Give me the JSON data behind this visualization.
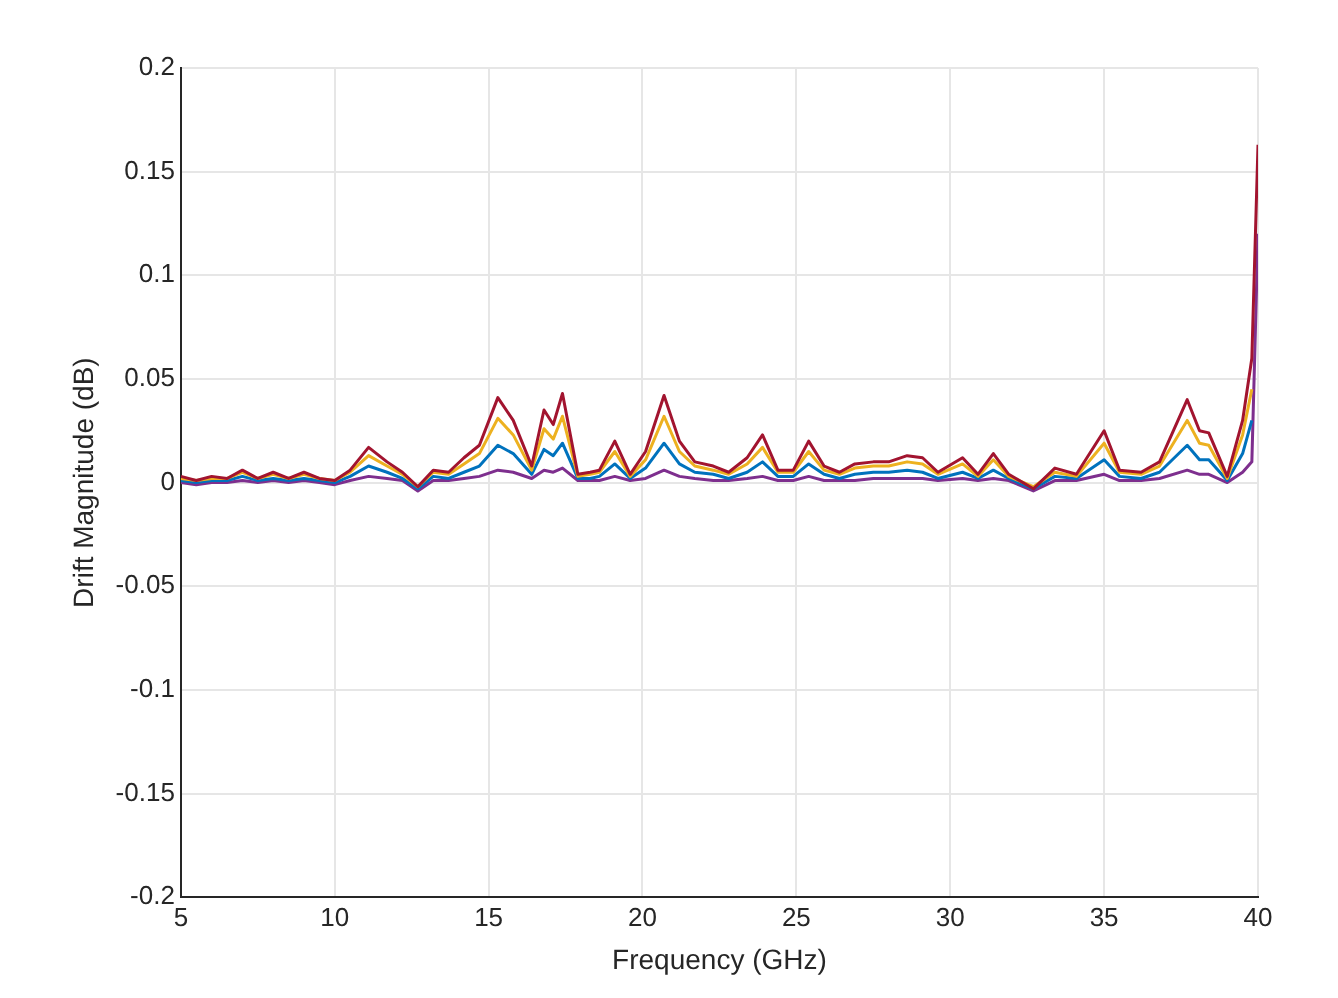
{
  "chart_data": {
    "type": "line",
    "xlabel": "Frequency (GHz)",
    "ylabel": "Drift Magnitude (dB)",
    "x": [
      5,
      5.5,
      6,
      6.5,
      7,
      7.5,
      8,
      8.5,
      9,
      9.5,
      10,
      10.5,
      11.1,
      11.7,
      12.2,
      12.7,
      13.2,
      13.7,
      14.2,
      14.7,
      15.3,
      15.8,
      16.4,
      16.8,
      17.1,
      17.4,
      17.9,
      18.3,
      18.6,
      19.1,
      19.6,
      20.1,
      20.7,
      21.2,
      21.7,
      22.3,
      22.8,
      23.4,
      23.9,
      24.4,
      24.9,
      25.4,
      25.9,
      26.4,
      26.9,
      27.5,
      28,
      28.6,
      29.1,
      29.6,
      30.4,
      30.9,
      31.4,
      31.9,
      32.7,
      33.4,
      34.1,
      35,
      35.5,
      36.2,
      36.8,
      37.7,
      38.1,
      38.4,
      39,
      39.5,
      39.8,
      40
    ],
    "series": [
      {
        "color": "#a2142f",
        "values": [
          0.003,
          0.001,
          0.003,
          0.002,
          0.006,
          0.002,
          0.005,
          0.002,
          0.005,
          0.002,
          0.001,
          0.006,
          0.017,
          0.01,
          0.005,
          -0.002,
          0.006,
          0.005,
          0.012,
          0.018,
          0.041,
          0.03,
          0.008,
          0.035,
          0.028,
          0.043,
          0.004,
          0.005,
          0.006,
          0.02,
          0.004,
          0.015,
          0.042,
          0.02,
          0.01,
          0.008,
          0.005,
          0.012,
          0.023,
          0.006,
          0.006,
          0.02,
          0.008,
          0.005,
          0.009,
          0.01,
          0.01,
          0.013,
          0.012,
          0.005,
          0.012,
          0.004,
          0.014,
          0.004,
          -0.003,
          0.007,
          0.004,
          0.025,
          0.006,
          0.005,
          0.01,
          0.04,
          0.025,
          0.024,
          0.003,
          0.03,
          0.06,
          0.163
        ]
      },
      {
        "color": "#edb120",
        "values": [
          0.002,
          0.001,
          0.002,
          0.002,
          0.005,
          0.002,
          0.004,
          0.002,
          0.004,
          0.002,
          0.001,
          0.005,
          0.013,
          0.008,
          0.004,
          -0.002,
          0.005,
          0.004,
          0.009,
          0.014,
          0.031,
          0.023,
          0.006,
          0.026,
          0.021,
          0.032,
          0.003,
          0.004,
          0.005,
          0.015,
          0.003,
          0.011,
          0.032,
          0.015,
          0.008,
          0.006,
          0.004,
          0.009,
          0.017,
          0.005,
          0.005,
          0.015,
          0.006,
          0.004,
          0.007,
          0.008,
          0.008,
          0.01,
          0.009,
          0.004,
          0.009,
          0.003,
          0.011,
          0.003,
          -0.002,
          0.005,
          0.003,
          0.019,
          0.005,
          0.004,
          0.008,
          0.03,
          0.019,
          0.018,
          0.002,
          0.023,
          0.045,
          null
        ]
      },
      {
        "color": "#0072bd",
        "values": [
          0.001,
          0,
          0.001,
          0.001,
          0.003,
          0.001,
          0.002,
          0.001,
          0.002,
          0.001,
          0,
          0.003,
          0.008,
          0.005,
          0.002,
          -0.003,
          0.003,
          0.002,
          0.005,
          0.008,
          0.018,
          0.014,
          0.004,
          0.016,
          0.013,
          0.019,
          0.002,
          0.002,
          0.003,
          0.009,
          0.002,
          0.007,
          0.019,
          0.009,
          0.005,
          0.004,
          0.002,
          0.005,
          0.01,
          0.003,
          0.003,
          0.009,
          0.004,
          0.002,
          0.004,
          0.005,
          0.005,
          0.006,
          0.005,
          0.002,
          0.005,
          0.002,
          0.006,
          0.002,
          -0.003,
          0.003,
          0.002,
          0.011,
          0.003,
          0.002,
          0.005,
          0.018,
          0.011,
          0.011,
          0.001,
          0.014,
          0.03,
          null
        ]
      },
      {
        "color": "#7e2f8e",
        "values": [
          0,
          -0.001,
          0,
          0,
          0.001,
          0,
          0.001,
          0,
          0.001,
          0,
          -0.001,
          0.001,
          0.003,
          0.002,
          0.001,
          -0.004,
          0.001,
          0.001,
          0.002,
          0.003,
          0.006,
          0.005,
          0.002,
          0.006,
          0.005,
          0.007,
          0.001,
          0.001,
          0.001,
          0.003,
          0.001,
          0.002,
          0.006,
          0.003,
          0.002,
          0.001,
          0.001,
          0.002,
          0.003,
          0.001,
          0.001,
          0.003,
          0.001,
          0.001,
          0.001,
          0.002,
          0.002,
          0.002,
          0.002,
          0.001,
          0.002,
          0.001,
          0.002,
          0.001,
          -0.004,
          0.001,
          0.001,
          0.004,
          0.001,
          0.001,
          0.002,
          0.006,
          0.004,
          0.004,
          0,
          0.005,
          0.01,
          0.12
        ]
      }
    ],
    "xlim": [
      5,
      40
    ],
    "xticks": [
      5,
      10,
      15,
      20,
      25,
      30,
      35,
      40
    ],
    "ylim": [
      -0.2,
      0.2
    ],
    "yticks": [
      -0.2,
      -0.15,
      -0.1,
      -0.05,
      0,
      0.05,
      0.1,
      0.15,
      0.2
    ],
    "grid": true,
    "legend": false,
    "marker": "none",
    "line_style": "solid"
  }
}
